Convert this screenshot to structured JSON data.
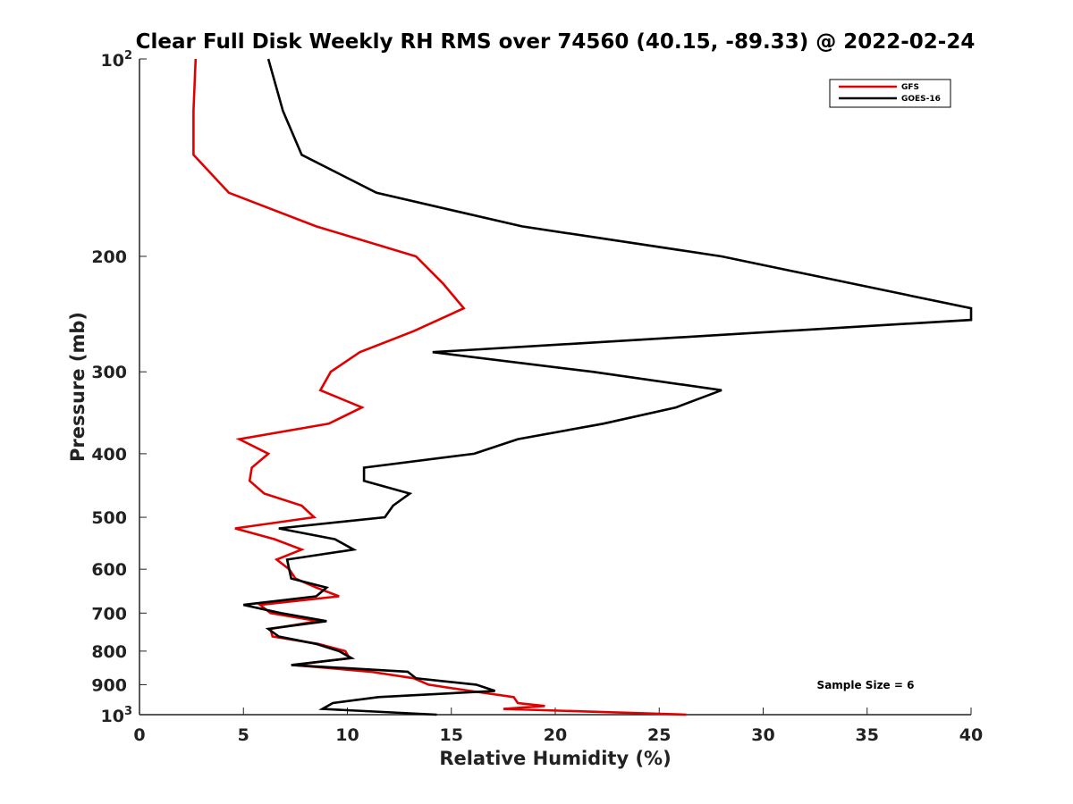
{
  "chart_data": {
    "type": "line",
    "title": "Clear Full Disk Weekly RH RMS over 74560 (40.15, -89.33) @ 2022-02-24",
    "xlabel": "Relative Humidity (%)",
    "ylabel": "Pressure (mb)",
    "xlim": [
      0,
      40
    ],
    "ylim": [
      100,
      1000
    ],
    "y_scale": "log",
    "y_reversed": true,
    "grid": false,
    "legend_position": "top-right",
    "x_ticks": [
      "0",
      "5",
      "10",
      "15",
      "20",
      "25",
      "30",
      "35",
      "40"
    ],
    "y_ticks": [
      {
        "value": 100,
        "label": "10",
        "sup": "2"
      },
      {
        "value": 200,
        "label": "200",
        "sup": ""
      },
      {
        "value": 300,
        "label": "300",
        "sup": ""
      },
      {
        "value": 400,
        "label": "400",
        "sup": ""
      },
      {
        "value": 500,
        "label": "500",
        "sup": ""
      },
      {
        "value": 600,
        "label": "600",
        "sup": ""
      },
      {
        "value": 700,
        "label": "700",
        "sup": ""
      },
      {
        "value": 800,
        "label": "800",
        "sup": ""
      },
      {
        "value": 900,
        "label": "900",
        "sup": ""
      },
      {
        "value": 1000,
        "label": "10",
        "sup": "3"
      }
    ],
    "annotation": "Sample Size = 6",
    "series": [
      {
        "name": "GFS",
        "color": "#e00000",
        "points": [
          [
            2.7,
            100
          ],
          [
            2.6,
            120
          ],
          [
            2.6,
            140
          ],
          [
            4.3,
            160
          ],
          [
            8.5,
            180
          ],
          [
            13.3,
            200
          ],
          [
            14.6,
            220
          ],
          [
            15.6,
            240
          ],
          [
            13.2,
            260
          ],
          [
            10.6,
            280
          ],
          [
            9.2,
            300
          ],
          [
            8.7,
            320
          ],
          [
            10.7,
            340
          ],
          [
            9.1,
            360
          ],
          [
            4.8,
            380
          ],
          [
            6.2,
            400
          ],
          [
            5.4,
            420
          ],
          [
            5.3,
            440
          ],
          [
            6.0,
            460
          ],
          [
            7.8,
            480
          ],
          [
            8.4,
            500
          ],
          [
            4.6,
            520
          ],
          [
            6.5,
            540
          ],
          [
            7.8,
            560
          ],
          [
            6.6,
            580
          ],
          [
            7.2,
            600
          ],
          [
            7.5,
            620
          ],
          [
            8.5,
            640
          ],
          [
            9.6,
            660
          ],
          [
            5.8,
            680
          ],
          [
            6.3,
            700
          ],
          [
            8.6,
            720
          ],
          [
            6.3,
            740
          ],
          [
            6.4,
            760
          ],
          [
            8.6,
            780
          ],
          [
            9.9,
            800
          ],
          [
            10.1,
            820
          ],
          [
            7.4,
            840
          ],
          [
            11.1,
            860
          ],
          [
            13.2,
            880
          ],
          [
            13.9,
            900
          ],
          [
            15.9,
            920
          ],
          [
            18.0,
            940
          ],
          [
            18.2,
            960
          ],
          [
            19.5,
            970
          ],
          [
            17.5,
            980
          ],
          [
            26.3,
            1000
          ]
        ]
      },
      {
        "name": "GOES-16",
        "color": "#000000",
        "points": [
          [
            6.2,
            100
          ],
          [
            6.9,
            120
          ],
          [
            7.8,
            140
          ],
          [
            11.4,
            160
          ],
          [
            18.4,
            180
          ],
          [
            28.0,
            200
          ],
          [
            40.0,
            240
          ],
          [
            40.0,
            250
          ],
          [
            14.1,
            280
          ],
          [
            21.8,
            300
          ],
          [
            28.0,
            320
          ],
          [
            25.8,
            340
          ],
          [
            22.3,
            360
          ],
          [
            18.2,
            380
          ],
          [
            16.1,
            400
          ],
          [
            10.8,
            420
          ],
          [
            10.8,
            440
          ],
          [
            13.0,
            460
          ],
          [
            12.2,
            480
          ],
          [
            11.8,
            500
          ],
          [
            6.7,
            520
          ],
          [
            9.4,
            540
          ],
          [
            10.3,
            560
          ],
          [
            7.1,
            580
          ],
          [
            7.2,
            600
          ],
          [
            7.3,
            620
          ],
          [
            9.0,
            640
          ],
          [
            8.5,
            660
          ],
          [
            5.0,
            680
          ],
          [
            6.8,
            700
          ],
          [
            9.0,
            720
          ],
          [
            6.2,
            740
          ],
          [
            6.7,
            760
          ],
          [
            8.5,
            780
          ],
          [
            9.6,
            800
          ],
          [
            10.2,
            820
          ],
          [
            7.3,
            840
          ],
          [
            12.9,
            860
          ],
          [
            13.3,
            880
          ],
          [
            16.2,
            900
          ],
          [
            17.1,
            920
          ],
          [
            11.5,
            940
          ],
          [
            9.3,
            960
          ],
          [
            8.8,
            980
          ],
          [
            14.3,
            1000
          ]
        ]
      }
    ]
  }
}
